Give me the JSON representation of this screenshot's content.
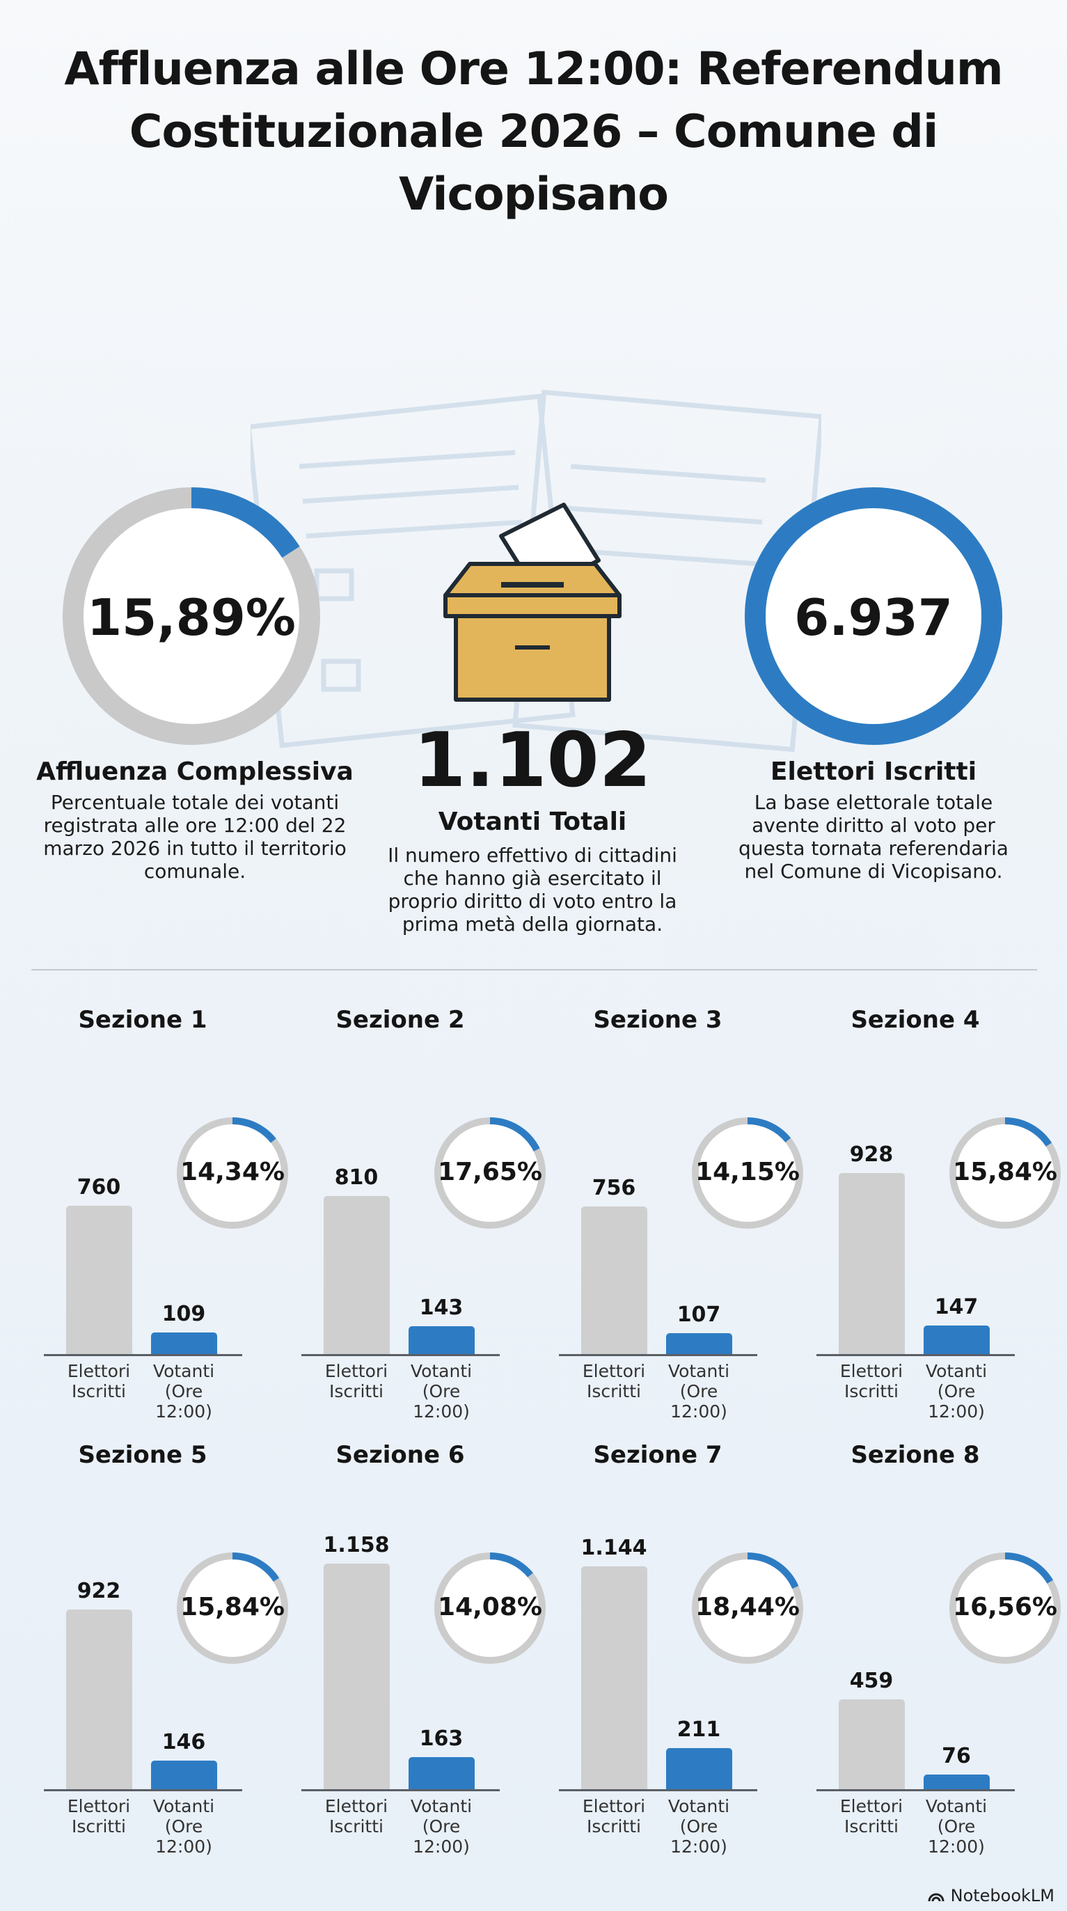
{
  "title_line1": "Affluenza alle Ore 12:00: Referendum",
  "title_line2": "Costituzionale 2026 – Comune di Vicopisano",
  "summary": {
    "turnout": {
      "value": "15,89%",
      "fraction": 0.1589,
      "label": "Affluenza Complessiva",
      "description": "Percentuale totale dei votanti registrata alle ore 12:00 del 22 marzo 2026 in tutto il territorio comunale."
    },
    "voters": {
      "value": "1.102",
      "label": "Votanti Totali",
      "description": "Il numero effettivo di cittadini che hanno già esercitato il proprio diritto di voto entro la prima metà della giornata.",
      "icon": "ballot-box-icon"
    },
    "registered": {
      "value": "6.937",
      "label": "Elettori Iscritti",
      "description": "La base elettorale totale avente diritto al voto per questa tornata referendaria nel Comune di Vicopisano."
    }
  },
  "axis_labels": {
    "elettori_1": "Elettori",
    "elettori_2": "Iscritti",
    "votanti_1": "Votanti",
    "votanti_2": "(Ore 12:00)"
  },
  "brand": "NotebookLM",
  "colors": {
    "blue": "#2d7cc3",
    "grey": "#cfcfcf",
    "ballot_box": "#e3b55a"
  },
  "chart_data": {
    "type": "bar",
    "categories": [
      "Elettori Iscritti",
      "Votanti (Ore 12:00)"
    ],
    "sections": [
      {
        "name": "Sezione 1",
        "elettori": 760,
        "elettori_label": "760",
        "votanti": 109,
        "votanti_label": "109",
        "pct": 0.1434,
        "pct_label": "14,34%"
      },
      {
        "name": "Sezione 2",
        "elettori": 810,
        "elettori_label": "810",
        "votanti": 143,
        "votanti_label": "143",
        "pct": 0.1765,
        "pct_label": "17,65%"
      },
      {
        "name": "Sezione 3",
        "elettori": 756,
        "elettori_label": "756",
        "votanti": 107,
        "votanti_label": "107",
        "pct": 0.1415,
        "pct_label": "14,15%"
      },
      {
        "name": "Sezione 4",
        "elettori": 928,
        "elettori_label": "928",
        "votanti": 147,
        "votanti_label": "147",
        "pct": 0.1584,
        "pct_label": "15,84%"
      },
      {
        "name": "Sezione 5",
        "elettori": 922,
        "elettori_label": "922",
        "votanti": 146,
        "votanti_label": "146",
        "pct": 0.1584,
        "pct_label": "15,84%"
      },
      {
        "name": "Sezione 6",
        "elettori": 1158,
        "elettori_label": "1.158",
        "votanti": 163,
        "votanti_label": "163",
        "pct": 0.1408,
        "pct_label": "14,08%"
      },
      {
        "name": "Sezione 7",
        "elettori": 1144,
        "elettori_label": "1.144",
        "votanti": 211,
        "votanti_label": "211",
        "pct": 0.1844,
        "pct_label": "18,44%"
      },
      {
        "name": "Sezione 8",
        "elettori": 459,
        "elettori_label": "459",
        "votanti": 76,
        "votanti_label": "76",
        "pct": 0.1656,
        "pct_label": "16,56%"
      }
    ]
  }
}
